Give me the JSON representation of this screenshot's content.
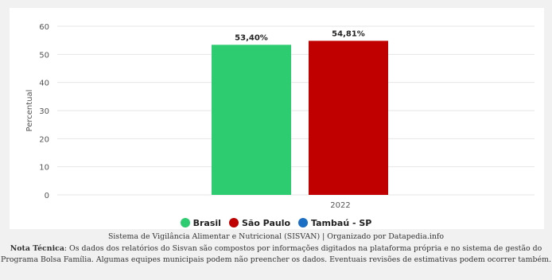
{
  "chart_data": {
    "type": "bar",
    "categories": [
      "2022"
    ],
    "series": [
      {
        "name": "Brasil",
        "values": [
          53.4
        ],
        "label": "53,40%",
        "color": "#2ecc71"
      },
      {
        "name": "São Paulo",
        "values": [
          54.81
        ],
        "label": "54,81%",
        "color": "#c00000"
      },
      {
        "name": "Tambaú - SP",
        "values": [
          null
        ],
        "label": "",
        "color": "#1a6fc4"
      }
    ],
    "ylabel": "Percentual",
    "xlabel": "",
    "ylim": [
      0,
      60
    ],
    "yticks": [
      "0",
      "10",
      "20",
      "30",
      "40",
      "50",
      "60"
    ],
    "grid": true,
    "legend_position": "bottom"
  },
  "footer": {
    "source": "Sistema de Vigilância Alimentar e Nutricional (SISVAN) | Organizado por Datapedia.info",
    "note_label": "Nota Técnica",
    "note_text": ": Os dados dos relatórios do Sisvan são compostos por informações digitados na plataforma própria e no sistema de gestão do Programa Bolsa Família. Algumas equipes municipais podem não preencher os dados. Eventuais revisões de estimativas podem ocorrer também."
  }
}
